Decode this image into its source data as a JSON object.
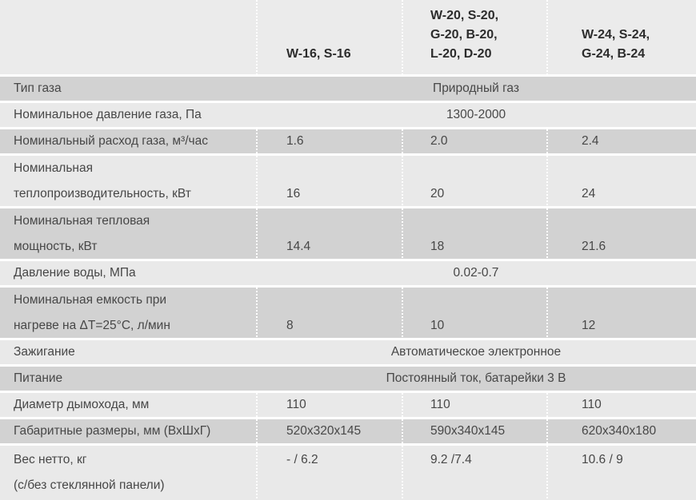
{
  "table": {
    "columns": [
      "",
      "W-16, S-16",
      "W-20, S-20,\nG-20, B-20,\nL-20, D-20",
      "W-24, S-24,\nG-24, B-24"
    ],
    "colors": {
      "row_dark": "#d2d2d2",
      "row_light": "#e9e9e9",
      "header_bg": "#ebebeb",
      "separator": "#ffffff",
      "text": "#474747",
      "header_text": "#2c2c2c"
    },
    "rows": [
      {
        "label": "Тип газа",
        "value": "Природный газ"
      },
      {
        "label": "Номинальное давление газа, Па",
        "value": "1300-2000"
      },
      {
        "label": "Номинальный расход газа, м³/час",
        "values": [
          "1.6",
          "2.0",
          "2.4"
        ]
      },
      {
        "label": "Номинальная",
        "label2": "теплопроизводительность, кВт",
        "values": [
          "16",
          "20",
          "24"
        ],
        "value_align": "bottom"
      },
      {
        "label": "Номинальная тепловая",
        "label2": "мощность, кВт",
        "values": [
          "14.4",
          "18",
          "21.6"
        ],
        "value_align": "bottom"
      },
      {
        "label": "Давление воды, МПа",
        "value": "0.02-0.7"
      },
      {
        "label": "Номинальная емкость при",
        "label2": "нагреве на ΔT=25°C, л/мин",
        "values": [
          "8",
          "10",
          "12"
        ],
        "value_align": "bottom"
      },
      {
        "label": "Зажигание",
        "value": "Автоматическое электронное"
      },
      {
        "label": "Питание",
        "value": "Постоянный ток, батарейки 3 В"
      },
      {
        "label": "Диаметр дымохода, мм",
        "values": [
          "110",
          "110",
          "110"
        ]
      },
      {
        "label": "Габаритные размеры, мм (ВхШхГ)",
        "values": [
          "520x320x145",
          "590x340x145",
          "620x340x180"
        ]
      },
      {
        "label": "Вес нетто, кг",
        "label2": "(с/без стеклянной панели)",
        "values": [
          "- / 6.2",
          "9.2 /7.4",
          "10.6 / 9"
        ],
        "value_align": "top"
      }
    ]
  }
}
